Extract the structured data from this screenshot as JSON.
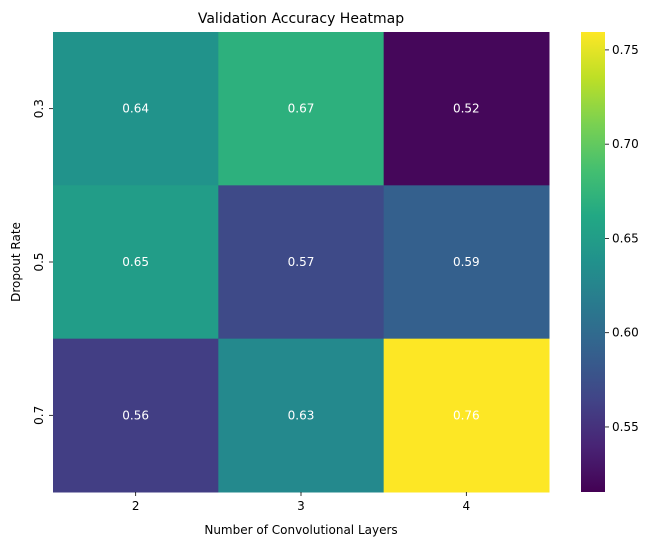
{
  "chart_data": {
    "type": "heatmap",
    "title": "Validation Accuracy Heatmap",
    "xlabel": "Number of Convolutional Layers",
    "ylabel": "Dropout Rate",
    "x_categories": [
      "2",
      "3",
      "4"
    ],
    "y_categories": [
      "0.3",
      "0.5",
      "0.7"
    ],
    "values": [
      [
        0.64,
        0.67,
        0.52
      ],
      [
        0.65,
        0.57,
        0.59
      ],
      [
        0.56,
        0.63,
        0.76
      ]
    ],
    "cell_labels": [
      [
        "0.64",
        "0.67",
        "0.52"
      ],
      [
        "0.65",
        "0.57",
        "0.59"
      ],
      [
        "0.56",
        "0.63",
        "0.76"
      ]
    ],
    "colormap": "viridis",
    "color_range": [
      0.5155,
      0.7595
    ],
    "colorbar_ticks": [
      0.55,
      0.6,
      0.65,
      0.7,
      0.75
    ],
    "colorbar_tick_labels": [
      "0.55",
      "0.60",
      "0.65",
      "0.70",
      "0.75"
    ],
    "annotation_color": "#ffffff",
    "grid": false,
    "legend": "none"
  }
}
